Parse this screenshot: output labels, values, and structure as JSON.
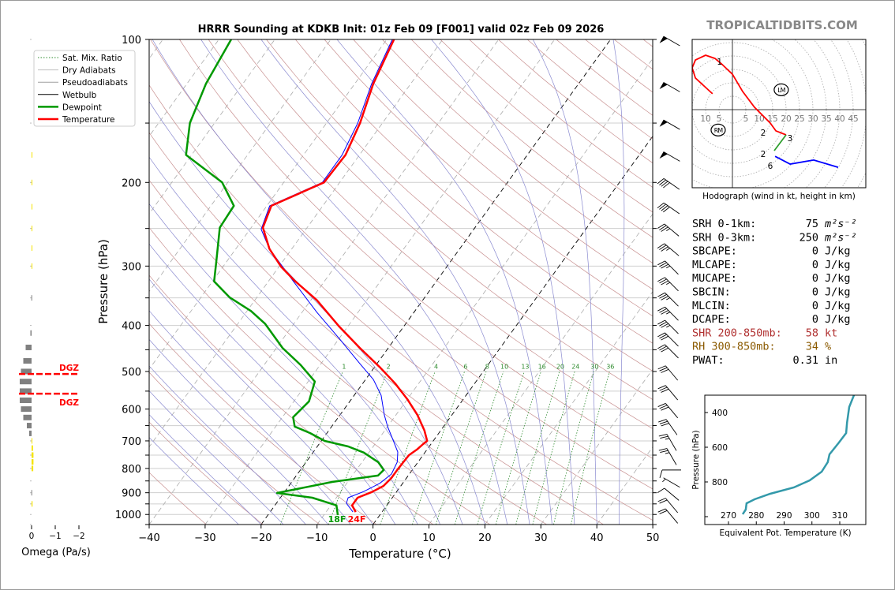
{
  "watermark": "TROPICALTIDBITS.COM",
  "chart_data": [
    {
      "type": "line",
      "subtype": "skew-t log-p",
      "title": "HRRR Sounding at KDKB Init: 01z Feb 09 [F001] valid 02z Feb 09 2026",
      "xlabel": "Temperature (°C)",
      "ylabel": "Pressure (hPa)",
      "xlim": [
        -40,
        50
      ],
      "ylim": [
        1050,
        100
      ],
      "yscale": "log",
      "xticks": [
        "−40",
        "−30",
        "−20",
        "−10",
        "0",
        "10",
        "20",
        "30",
        "40",
        "50"
      ],
      "yticks": [
        "100",
        "200",
        "300",
        "400",
        "500",
        "600",
        "700",
        "800",
        "900",
        "1000"
      ],
      "grid": true,
      "legend_placement": "top-left",
      "legend": [
        "Sat. Mix. Ratio",
        "Dry Adiabats",
        "Pseudoadiabats",
        "Wetbulb",
        "Dewpoint",
        "Temperature"
      ],
      "mixing_ratio_labels": [
        "1",
        "2",
        "4",
        "6",
        "8",
        "10",
        "13",
        "16",
        "20",
        "24",
        "30",
        "36"
      ],
      "surface_dewpoint_label": "18F",
      "surface_temperature_label": "24F",
      "colors": {
        "temperature": "#ff0000",
        "dewpoint": "#009900",
        "wetbulb": "#0000ff",
        "dry_adiabat": "#c89090",
        "pseudoadiabat": "#8a8ad0",
        "mixing_ratio": "#2e8b2e",
        "isotherm": "#999999"
      },
      "series": [
        {
          "name": "Temperature",
          "p": [
            988,
            957,
            922,
            897,
            871,
            838,
            806,
            776,
            750,
            730,
            711,
            700,
            666,
            617,
            572,
            530,
            490,
            446,
            401,
            354,
            322,
            301,
            276,
            249,
            224,
            200,
            175,
            150,
            124,
            100
          ],
          "T": [
            -4.7,
            -6.2,
            -6.2,
            -4.4,
            -3.1,
            -2.7,
            -2.7,
            -2.6,
            -2.5,
            -1.8,
            -1.4,
            -1.1,
            -2.9,
            -6.2,
            -10.0,
            -14.2,
            -19.0,
            -25.1,
            -31.7,
            -38.9,
            -45.4,
            -49.6,
            -54.0,
            -57.9,
            -59.2,
            -52.8,
            -52.5,
            -54.0,
            -56.7,
            -58.7
          ]
        },
        {
          "name": "Dewpoint",
          "p": [
            1003,
            957,
            922,
            901,
            854,
            828,
            806,
            776,
            741,
            719,
            700,
            674,
            653,
            624,
            578,
            525,
            485,
            446,
            397,
            373,
            349,
            323,
            293,
            249,
            224,
            200,
            175,
            150,
            124,
            100
          ],
          "T": [
            -7.5,
            -9.0,
            -14.3,
            -21.2,
            -12.8,
            -5.4,
            -5.1,
            -7.1,
            -10.9,
            -14.5,
            -19.4,
            -23.0,
            -26.6,
            -28.1,
            -27.3,
            -28.8,
            -33.4,
            -38.9,
            -45.1,
            -49.3,
            -54.9,
            -59.7,
            -61.9,
            -65.6,
            -65.9,
            -71.0,
            -81.0,
            -84.4,
            -86.6,
            -87.8
          ]
        },
        {
          "name": "Wetbulb",
          "p": [
            988,
            947,
            922,
            895,
            860,
            822,
            776,
            739,
            697,
            653,
            617,
            561,
            520,
            481,
            429,
            375,
            322,
            276,
            251,
            224,
            200,
            175,
            150,
            124,
            100
          ],
          "T": [
            -5.2,
            -7.5,
            -7.9,
            -5.9,
            -4.1,
            -3.2,
            -3.7,
            -4.9,
            -7.3,
            -10.0,
            -12.1,
            -15.2,
            -18.6,
            -23.1,
            -29.6,
            -37.4,
            -45.7,
            -54.0,
            -58.0,
            -59.5,
            -53.1,
            -53.1,
            -54.4,
            -57.0,
            -59.0
          ]
        }
      ],
      "wind_barbs": {
        "p": [
          100,
          125,
          150,
          175,
          200,
          225,
          250,
          275,
          300,
          325,
          350,
          375,
          400,
          425,
          450,
          500,
          550,
          600,
          650,
          700,
          750,
          800,
          850,
          900,
          950,
          1000
        ],
        "direction_deg": [
          300,
          300,
          300,
          300,
          305,
          305,
          310,
          310,
          315,
          315,
          315,
          315,
          315,
          315,
          315,
          320,
          320,
          320,
          325,
          330,
          330,
          270,
          300,
          310,
          320,
          320
        ],
        "speed_kt": [
          50,
          50,
          50,
          50,
          40,
          40,
          35,
          35,
          35,
          35,
          35,
          35,
          35,
          30,
          30,
          30,
          30,
          30,
          30,
          25,
          25,
          10,
          5,
          10,
          20,
          20
        ]
      }
    },
    {
      "type": "bar",
      "orientation": "horizontal",
      "xlabel": "Omega (Pa/s)",
      "xticks": [
        "0",
        "−1",
        "−2"
      ],
      "xlim": [
        0.5,
        -2.1
      ],
      "p": [
        175,
        200,
        225,
        250,
        275,
        300,
        350,
        415,
        445,
        475,
        500,
        525,
        550,
        575,
        600,
        625,
        650,
        675,
        700,
        725,
        750,
        775,
        800,
        900,
        950
      ],
      "omega": [
        -0.02,
        -0.03,
        -0.02,
        -0.02,
        -0.02,
        -0.02,
        0.01,
        0.05,
        0.25,
        0.35,
        0.45,
        0.5,
        0.5,
        0.5,
        0.45,
        0.35,
        0.2,
        0.1,
        -0.03,
        -0.06,
        -0.08,
        -0.08,
        -0.07,
        0.01,
        -0.04
      ],
      "colors": {
        "rising": "#808080",
        "sinking": "#f5e400"
      },
      "dgz": {
        "label": "DGZ",
        "p_top": 506,
        "p_bottom": 557,
        "color": "#ff0000"
      }
    },
    {
      "type": "line",
      "subtype": "hodograph",
      "xlabel": "Hodograph (wind in kt, height in km)",
      "ring_labels_left": [
        "10",
        "5"
      ],
      "ring_labels_right": [
        "5",
        "10",
        "15",
        "20",
        "25",
        "30",
        "35",
        "40",
        "45"
      ],
      "segments": [
        {
          "color": "#ff0000",
          "u": [
            -7.4,
            -13.8,
            -15,
            -13.8,
            -10,
            -6.5,
            -4.1,
            0,
            3.8,
            8.2,
            14.1,
            16.2,
            20
          ],
          "v": [
            5.9,
            11.8,
            15.6,
            18.5,
            20.3,
            19.1,
            17.1,
            13.2,
            6.8,
            0.9,
            -5,
            -7.9,
            -9.4
          ]
        },
        {
          "color": "#2e9e2e",
          "u": [
            20,
            15.6
          ],
          "v": [
            -9.4,
            -15.3
          ]
        },
        {
          "color": "#0000ff",
          "u": [
            15.9,
            21.5,
            30.3,
            39.4
          ],
          "v": [
            -17.4,
            -20.3,
            -18.8,
            -21.5
          ]
        }
      ],
      "height_labels": [
        {
          "text": "1",
          "u": -4.8,
          "v": 18.0
        },
        {
          "text": "2",
          "u": 14.1,
          "v": -6.2
        },
        {
          "text": "3",
          "u": 20.3,
          "v": -10.0
        },
        {
          "text": "2",
          "u": 14.4,
          "v": -17.0
        },
        {
          "text": "6",
          "u": 14.1,
          "v": -19.1
        }
      ],
      "storm_motion": [
        {
          "label": "LM",
          "u": 18.2,
          "v": 7.4
        },
        {
          "label": "RM",
          "u": -5.3,
          "v": -7.6
        }
      ]
    },
    {
      "type": "line",
      "xlabel": "Equivalent Pot. Temperature (K)",
      "ylabel": "Pressure (hPa)",
      "xlim": [
        262,
        320
      ],
      "ylim": [
        1050,
        300
      ],
      "xticks": [
        "270",
        "280",
        "290",
        "300",
        "310"
      ],
      "yticks": [
        "400",
        "600",
        "800"
      ],
      "color": "#3399aa",
      "theta_e": [
        315.1,
        313.4,
        312.6,
        312.3,
        309.7,
        306.3,
        305.7,
        303.5,
        299.2,
        293.5,
        285.0,
        279.4,
        276.5,
        276.2,
        275.1
      ],
      "p": [
        300,
        368,
        459,
        518,
        573,
        641,
        686,
        741,
        791,
        832,
        868,
        900,
        923,
        959,
        986
      ]
    }
  ],
  "indices": [
    {
      "label": "SRH 0-1km:",
      "value": "75",
      "unit": "m²s⁻²",
      "color": "#000000"
    },
    {
      "label": "SRH 0-3km:",
      "value": "250",
      "unit": "m²s⁻²",
      "color": "#000000"
    },
    {
      "label": "SBCAPE:",
      "value": "0",
      "unit": "J/kg",
      "color": "#000000"
    },
    {
      "label": "MLCAPE:",
      "value": "0",
      "unit": "J/kg",
      "color": "#000000"
    },
    {
      "label": "MUCAPE:",
      "value": "0",
      "unit": "J/kg",
      "color": "#000000"
    },
    {
      "label": "SBCIN:",
      "value": "0",
      "unit": "J/kg",
      "color": "#000000"
    },
    {
      "label": "MLCIN:",
      "value": "0",
      "unit": "J/kg",
      "color": "#000000"
    },
    {
      "label": "DCAPE:",
      "value": "0",
      "unit": "J/kg",
      "color": "#000000"
    },
    {
      "label": "SHR 200-850mb:",
      "value": "58",
      "unit": "kt",
      "color": "#b03030"
    },
    {
      "label": "RH 300-850mb:",
      "value": "34",
      "unit": "%",
      "color": "#8b5a00"
    },
    {
      "label": "PWAT:",
      "value": "0.31",
      "unit": "in",
      "color": "#000000"
    }
  ]
}
